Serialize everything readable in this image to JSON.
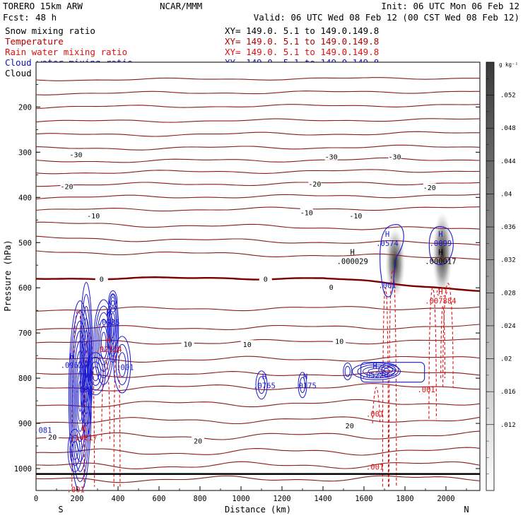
{
  "header": {
    "model": "TORERO  15km ARW",
    "org": "NCAR/MMM",
    "init": "Init: 06 UTC Mon 06 Feb 12",
    "fcst_label": "Fcst:",
    "fcst_value": "48 h",
    "valid": "Valid: 06 UTC Wed 08 Feb 12 (00 CST Wed 08 Feb 12)"
  },
  "fields": [
    {
      "label": "Snow mixing ratio",
      "color": "#000000"
    },
    {
      "label": "Temperature",
      "color": "#b00000"
    },
    {
      "label": "Rain water mixing ratio",
      "color": "#e01010"
    },
    {
      "label": "Cloud water mixing ratio",
      "color": "#1010c0"
    },
    {
      "label": "Cloud ice mixing ratio",
      "color": "#000000"
    }
  ],
  "xsection_label": "XY= 149.0.  5.1 to 149.0.149.8",
  "colors": {
    "temperature": "#8b1a1a",
    "freezing": "#7a0000",
    "rain": "#e01010",
    "cloud_water": "#1a1ad0",
    "labels": "#000000"
  },
  "chart_data": {
    "type": "contour",
    "xlabel": "Distance (km)",
    "ylabel": "Pressure (hPa)",
    "xlim": [
      0,
      2200
    ],
    "ylim": [
      1050,
      100
    ],
    "x_ticks": [
      "0",
      "200",
      "400",
      "600",
      "800",
      "1000",
      "1200",
      "1400",
      "1600",
      "1800",
      "2000"
    ],
    "y_ticks": [
      "200",
      "300",
      "400",
      "500",
      "600",
      "700",
      "800",
      "900",
      "1000"
    ],
    "x_ends": {
      "left": "S",
      "right": "N"
    },
    "colorbar": {
      "unit": "g kg⁻¹",
      "labels": [
        ".052",
        ".048",
        ".044",
        ".04",
        ".036",
        ".032",
        ".028",
        ".024",
        ".02",
        ".016",
        ".012"
      ],
      "range": [
        0.004,
        0.056
      ]
    },
    "temperature_labels": [
      {
        "text": "-30",
        "x": 195,
        "p": 305
      },
      {
        "text": "-30",
        "x": 1440,
        "p": 310
      },
      {
        "text": "-30",
        "x": 1750,
        "p": 310
      },
      {
        "text": "-20",
        "x": 150,
        "p": 375
      },
      {
        "text": "-20",
        "x": 1360,
        "p": 370
      },
      {
        "text": "-20",
        "x": 1920,
        "p": 378
      },
      {
        "text": "-10",
        "x": 280,
        "p": 440
      },
      {
        "text": "-10",
        "x": 1320,
        "p": 433
      },
      {
        "text": "-10",
        "x": 1560,
        "p": 440
      },
      {
        "text": "0",
        "x": 320,
        "p": 580
      },
      {
        "text": "0",
        "x": 1120,
        "p": 580
      },
      {
        "text": "0",
        "x": 1440,
        "p": 598
      },
      {
        "text": "10",
        "x": 740,
        "p": 724
      },
      {
        "text": "10",
        "x": 1030,
        "p": 725
      },
      {
        "text": "10",
        "x": 1480,
        "p": 718
      },
      {
        "text": "20",
        "x": 80,
        "p": 930
      },
      {
        "text": "20",
        "x": 790,
        "p": 938
      },
      {
        "text": "20",
        "x": 1530,
        "p": 905
      }
    ],
    "extrema": [
      {
        "kind": "H",
        "value": ".0574",
        "x": 1700,
        "p": 490,
        "field": "cloud_water"
      },
      {
        "kind": "H",
        "value": ".0099",
        "x": 1960,
        "p": 490,
        "field": "cloud_water"
      },
      {
        "kind": "H",
        "value": ".000029",
        "x": 1530,
        "p": 530,
        "field": "snow"
      },
      {
        "kind": "H",
        "value": ".000017",
        "x": 1960,
        "p": 530,
        "field": "snow"
      },
      {
        "kind": "",
        "value": ".001",
        "x": 1700,
        "p": 583,
        "field": "cloud_water"
      },
      {
        "kind": "H",
        "value": ".007884",
        "x": 1960,
        "p": 618,
        "field": "rain"
      },
      {
        "kind": "H",
        "value": ".0985",
        "x": 340,
        "p": 665,
        "field": "cloud_water"
      },
      {
        "kind": "H",
        "value": ".02124",
        "x": 340,
        "p": 725,
        "field": "rain"
      },
      {
        "kind": "H",
        "value": ".0962",
        "x": 160,
        "p": 760,
        "field": "cloud_water"
      },
      {
        "kind": "",
        "value": ".001",
        "x": 420,
        "p": 765,
        "field": "cloud_water"
      },
      {
        "kind": "H",
        "value": ".0765",
        "x": 1100,
        "p": 805,
        "field": "cloud_water"
      },
      {
        "kind": "H",
        "value": ".0175",
        "x": 1300,
        "p": 805,
        "field": "cloud_water"
      },
      {
        "kind": "H",
        "value": ".05228",
        "x": 1640,
        "p": 782,
        "field": "cloud_water"
      },
      {
        "kind": "",
        "value": ".001",
        "x": 220,
        "p": 814,
        "field": "cloud_water"
      },
      {
        "kind": "",
        "value": ".001",
        "x": 1890,
        "p": 814,
        "field": "rain"
      },
      {
        "kind": "",
        "value": ".001",
        "x": 1640,
        "p": 868,
        "field": "rain"
      },
      {
        "kind": "H",
        "value": ".14017",
        "x": 220,
        "p": 920,
        "field": "rain"
      },
      {
        "kind": "",
        "value": ".081",
        "x": 20,
        "p": 904,
        "field": "cloud_water"
      },
      {
        "kind": "",
        "value": ".001",
        "x": 1640,
        "p": 985,
        "field": "rain"
      },
      {
        "kind": "",
        "value": ".001",
        "x": 180,
        "p": 1035,
        "field": "rain"
      }
    ]
  }
}
